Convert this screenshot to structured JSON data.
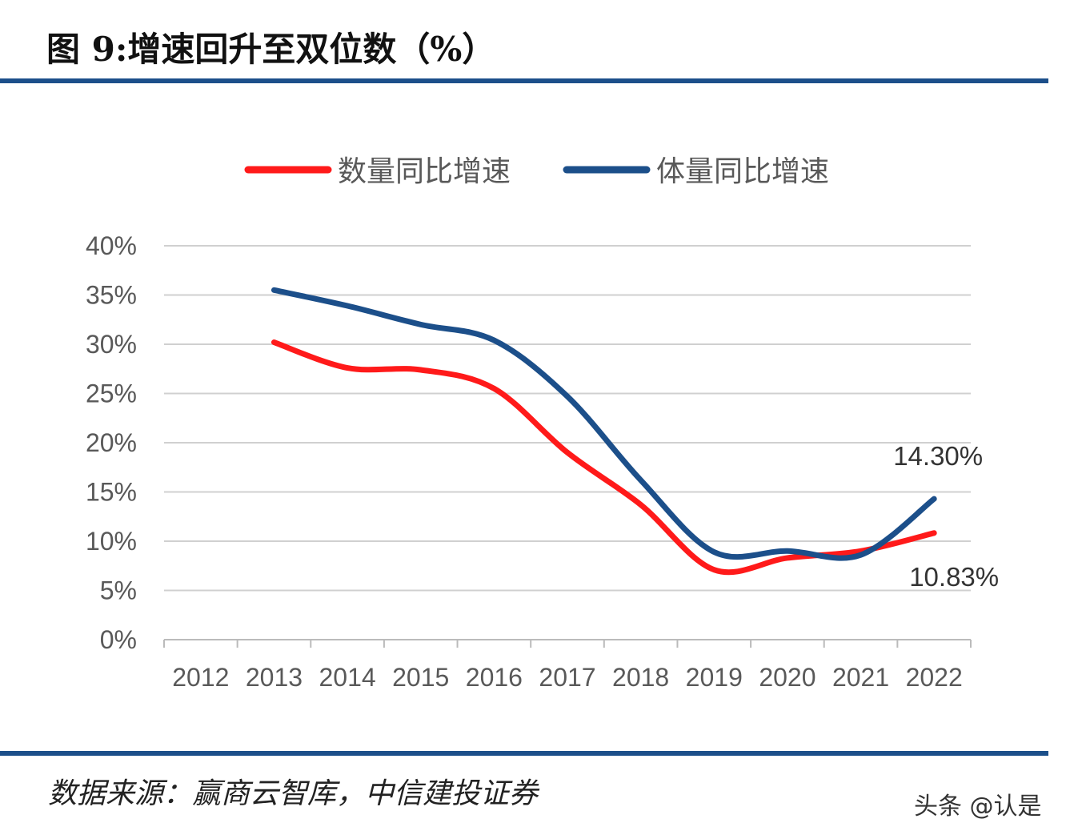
{
  "title": "图 9:增速回升至双位数（%）",
  "source": "数据来源：赢商云智库，中信建投证券",
  "watermark": "头条 @认是",
  "chart_data": {
    "type": "line",
    "title": "图 9:增速回升至双位数（%）",
    "categories": [
      "2012",
      "2013",
      "2014",
      "2015",
      "2016",
      "2017",
      "2018",
      "2019",
      "2020",
      "2021",
      "2022"
    ],
    "y_ticks": [
      "0%",
      "5%",
      "10%",
      "15%",
      "20%",
      "25%",
      "30%",
      "35%",
      "40%"
    ],
    "ylim": [
      0,
      40
    ],
    "grid": true,
    "smooth": true,
    "legend_position": "top",
    "series": [
      {
        "name": "数量同比增速",
        "color": "#ff1a1a",
        "values": [
          null,
          30.2,
          27.6,
          27.4,
          25.5,
          19.0,
          13.7,
          7.1,
          8.3,
          9.0,
          10.83
        ]
      },
      {
        "name": "体量同比增速",
        "color": "#1c4f8a",
        "values": [
          null,
          35.5,
          33.9,
          32.0,
          30.4,
          24.7,
          16.2,
          8.9,
          9.0,
          8.6,
          14.3
        ]
      }
    ],
    "annotations": [
      {
        "text": "14.30%",
        "series": 1,
        "category": "2022"
      },
      {
        "text": "10.83%",
        "series": 0,
        "category": "2022"
      }
    ]
  }
}
